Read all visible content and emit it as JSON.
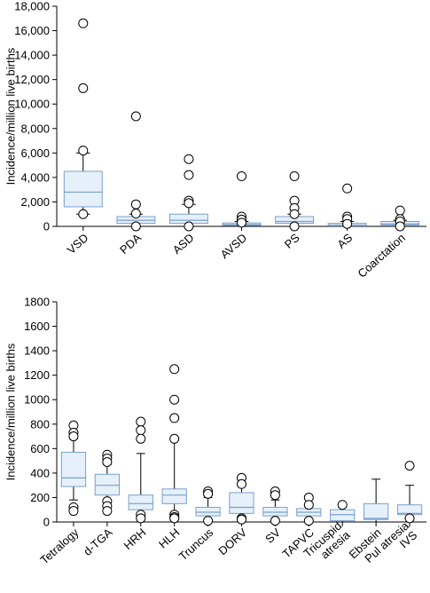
{
  "chart_data": [
    {
      "type": "box",
      "ylabel": "Incidence/million live births",
      "ylim": [
        0,
        18000
      ],
      "yticks": [
        0,
        2000,
        4000,
        6000,
        8000,
        10000,
        12000,
        14000,
        16000,
        18000
      ],
      "ytick_labels": [
        "0",
        "2,000",
        "4,000",
        "6,000",
        "8,000",
        "10,000",
        "12,000",
        "14,000",
        "16,000",
        "18,000"
      ],
      "grid": false,
      "categories": [
        "VSD",
        "PDA",
        "ASD",
        "AVSD",
        "PS",
        "AS",
        "Coarctation"
      ],
      "boxes": [
        {
          "whisker_low": 1000,
          "q1": 1600,
          "median": 2800,
          "q3": 4500,
          "whisker_high": 6000,
          "outliers": [
            16600,
            11300,
            6200,
            1000
          ]
        },
        {
          "whisker_low": 0,
          "q1": 250,
          "median": 500,
          "q3": 800,
          "whisker_high": 1000,
          "outliers": [
            9000,
            1800,
            1050,
            0
          ]
        },
        {
          "whisker_low": 0,
          "q1": 250,
          "median": 500,
          "q3": 1000,
          "whisker_high": 1800,
          "outliers": [
            5500,
            4200,
            2100,
            1900,
            0
          ]
        },
        {
          "whisker_low": 0,
          "q1": 80,
          "median": 150,
          "q3": 280,
          "whisker_high": 400,
          "outliers": [
            4100,
            800,
            550,
            300
          ]
        },
        {
          "whisker_low": 0,
          "q1": 250,
          "median": 400,
          "q3": 800,
          "whisker_high": 1000,
          "outliers": [
            4100,
            2100,
            1500,
            1000,
            0
          ]
        },
        {
          "whisker_low": 0,
          "q1": 40,
          "median": 100,
          "q3": 250,
          "whisker_high": 400,
          "outliers": [
            3100,
            800,
            600,
            200
          ]
        },
        {
          "whisker_low": 0,
          "q1": 100,
          "median": 200,
          "q3": 400,
          "whisker_high": 500,
          "outliers": [
            1300,
            600,
            400,
            0
          ]
        }
      ]
    },
    {
      "type": "box",
      "ylabel": "Incidence/million live births",
      "ylim": [
        0,
        1800
      ],
      "yticks": [
        0,
        200,
        400,
        600,
        800,
        1000,
        1200,
        1400,
        1600,
        1800
      ],
      "ytick_labels": [
        "0",
        "200",
        "400",
        "600",
        "800",
        "1000",
        "1200",
        "1400",
        "1600",
        "1800"
      ],
      "grid": false,
      "categories": [
        "Tetralogy",
        "d-TGA",
        "HRH",
        "HLH",
        "Truncus",
        "DORV",
        "SV",
        "TAPVC",
        "Tricuspid\natresia",
        "Ebstein",
        "Pul atresia\nIVS"
      ],
      "boxes": [
        {
          "whisker_low": 180,
          "q1": 290,
          "median": 360,
          "q3": 570,
          "whisker_high": 680,
          "outliers": [
            790,
            730,
            700,
            120,
            90
          ]
        },
        {
          "whisker_low": 180,
          "q1": 220,
          "median": 300,
          "q3": 390,
          "whisker_high": 470,
          "outliers": [
            550,
            520,
            490,
            170,
            130,
            90
          ]
        },
        {
          "whisker_low": 60,
          "q1": 100,
          "median": 150,
          "q3": 220,
          "whisker_high": 560,
          "outliers": [
            820,
            750,
            680,
            60,
            30
          ]
        },
        {
          "whisker_low": 80,
          "q1": 150,
          "median": 220,
          "q3": 270,
          "whisker_high": 680,
          "outliers": [
            1250,
            1000,
            850,
            680,
            60,
            40,
            30
          ]
        },
        {
          "whisker_low": 20,
          "q1": 50,
          "median": 80,
          "q3": 120,
          "whisker_high": 200,
          "outliers": [
            250,
            230,
            10
          ]
        },
        {
          "whisker_low": 30,
          "q1": 70,
          "median": 120,
          "q3": 240,
          "whisker_high": 290,
          "outliers": [
            360,
            310,
            30,
            20
          ]
        },
        {
          "whisker_low": 20,
          "q1": 50,
          "median": 80,
          "q3": 120,
          "whisker_high": 180,
          "outliers": [
            250,
            220,
            10
          ]
        },
        {
          "whisker_low": 20,
          "q1": 50,
          "median": 80,
          "q3": 110,
          "whisker_high": 130,
          "outliers": [
            200,
            140,
            10
          ]
        },
        {
          "whisker_low": 0,
          "q1": 10,
          "median": 60,
          "q3": 100,
          "whisker_high": 120,
          "outliers": [
            140
          ]
        },
        {
          "whisker_low": 0,
          "q1": 20,
          "median": 30,
          "q3": 150,
          "whisker_high": 350,
          "outliers": []
        },
        {
          "whisker_low": 0,
          "q1": 60,
          "median": 70,
          "q3": 140,
          "whisker_high": 300,
          "outliers": [
            460,
            30
          ]
        }
      ]
    }
  ],
  "colors": {
    "box_fill": "#e5f0fb",
    "box_stroke": "#7aa0cc",
    "median": "#7aa0cc",
    "whisker": "#000000",
    "axis": "#000000"
  }
}
